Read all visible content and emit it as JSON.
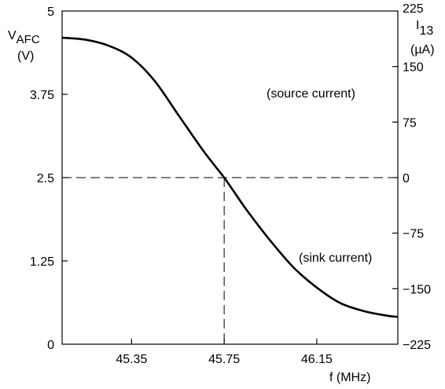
{
  "chart_data": {
    "type": "line",
    "title": "",
    "xlabel": "f (MHz)",
    "ylabel_left": {
      "main": "V",
      "sub": "AFC",
      "unit": "(V)"
    },
    "ylabel_right": {
      "main": "I",
      "sub": "13",
      "unit": "(µA)"
    },
    "xlim": [
      45.05,
      46.5
    ],
    "ylim_left": [
      0,
      5
    ],
    "ylim_right": [
      -225,
      225
    ],
    "x_ticks": [
      45.35,
      45.75,
      46.15
    ],
    "x_tick_labels": [
      "45.35",
      "45.75",
      "46.15"
    ],
    "y_left_ticks": [
      0,
      1.25,
      2.5,
      3.75,
      5
    ],
    "y_left_tick_labels": [
      "0",
      "1.25",
      "2.5",
      "3.75",
      "5"
    ],
    "y_right_ticks": [
      -225,
      -150,
      -75,
      0,
      75,
      150,
      225
    ],
    "y_right_tick_labels": [
      "−225",
      "−150",
      "−75",
      "0",
      "75",
      "150",
      "225"
    ],
    "grid": false,
    "series": [
      {
        "x": [
          45.05,
          45.15,
          45.25,
          45.35,
          45.45,
          45.55,
          45.65,
          45.7,
          45.75,
          45.8,
          45.85,
          45.95,
          46.05,
          46.15,
          46.25,
          46.35,
          46.45,
          46.5
        ],
        "y": [
          4.6,
          4.57,
          4.48,
          4.3,
          3.95,
          3.45,
          2.95,
          2.72,
          2.5,
          2.25,
          2.0,
          1.55,
          1.15,
          0.85,
          0.62,
          0.5,
          0.43,
          0.41
        ]
      }
    ],
    "reference_lines": [
      {
        "orientation": "horizontal",
        "y": 2.5
      },
      {
        "orientation": "vertical",
        "x": 45.75
      }
    ],
    "annotations": [
      {
        "text": "(source current)",
        "x": 46.15,
        "y": 3.75
      },
      {
        "text": "(sink current)",
        "x": 46.2,
        "y": 1.3
      }
    ]
  }
}
